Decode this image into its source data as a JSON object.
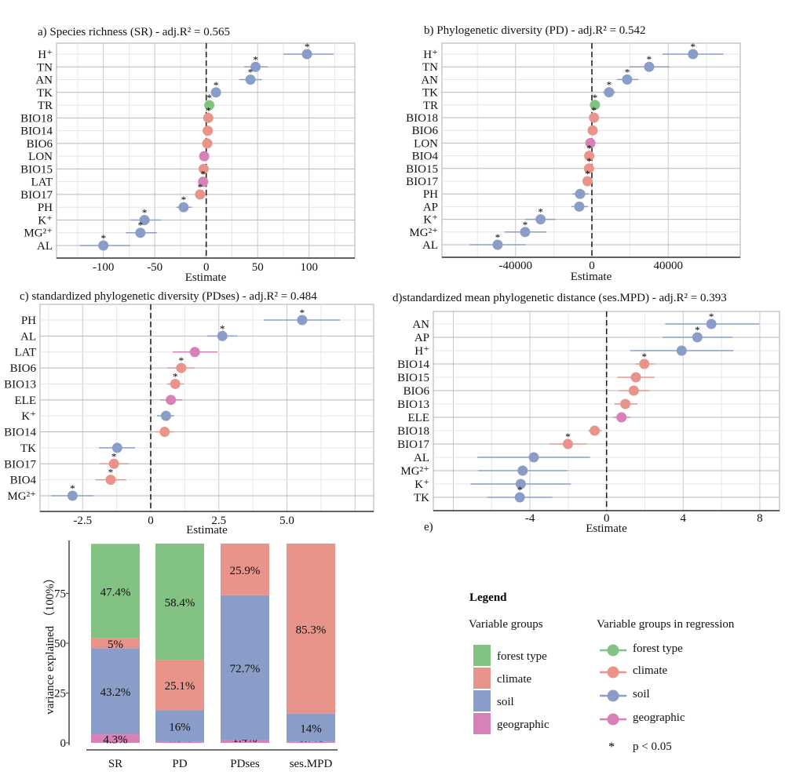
{
  "colors": {
    "forest type": "#82c282",
    "climate": "#e8948a",
    "soil": "#8a9dc8",
    "geographic": "#d880b8"
  },
  "chart_data": [
    {
      "id": "a",
      "type": "scatter",
      "title": "a)  Species richness (SR) -  adj.R² = 0.565",
      "xlabel": "Estimate",
      "ticks": [
        -100,
        -50,
        0,
        50,
        100
      ],
      "xlim": [
        -140,
        140
      ],
      "grid": true,
      "points": [
        {
          "var": "H⁺",
          "group": "soil",
          "est": 98,
          "lo": 75,
          "hi": 124,
          "sig": true
        },
        {
          "var": "TN",
          "group": "soil",
          "est": 48,
          "lo": 37,
          "hi": 60,
          "sig": true
        },
        {
          "var": "AN",
          "group": "soil",
          "est": 43,
          "lo": 32,
          "hi": 54,
          "sig": true
        },
        {
          "var": "TK",
          "group": "soil",
          "est": 9.5,
          "lo": 7,
          "hi": 12,
          "sig": true
        },
        {
          "var": "TR",
          "group": "forest type",
          "est": 3,
          "lo": 1,
          "hi": 5,
          "sig": true
        },
        {
          "var": "BIO18",
          "group": "climate",
          "est": 2,
          "lo": 0,
          "hi": 4,
          "sig": true
        },
        {
          "var": "BIO14",
          "group": "climate",
          "est": 1.5,
          "lo": 0,
          "hi": 3,
          "sig": false
        },
        {
          "var": "BIO6",
          "group": "climate",
          "est": 1,
          "lo": -1,
          "hi": 3,
          "sig": false
        },
        {
          "var": "LON",
          "group": "geographic",
          "est": -2,
          "lo": -4,
          "hi": 0,
          "sig": false
        },
        {
          "var": "BIO15",
          "group": "climate",
          "est": -2.5,
          "lo": -4.5,
          "hi": -0.5,
          "sig": false
        },
        {
          "var": "LAT",
          "group": "geographic",
          "est": -3,
          "lo": -5,
          "hi": -1,
          "sig": true
        },
        {
          "var": "BIO17",
          "group": "climate",
          "est": -6,
          "lo": -8,
          "hi": -4,
          "sig": true
        },
        {
          "var": "PH",
          "group": "soil",
          "est": -22,
          "lo": -29,
          "hi": -14,
          "sig": true
        },
        {
          "var": "K⁺",
          "group": "soil",
          "est": -60,
          "lo": -74,
          "hi": -44,
          "sig": true
        },
        {
          "var": "MG²⁺",
          "group": "soil",
          "est": -64,
          "lo": -78,
          "hi": -48,
          "sig": true
        },
        {
          "var": "AL",
          "group": "soil",
          "est": -100,
          "lo": -123,
          "hi": -74,
          "sig": true
        }
      ]
    },
    {
      "id": "b",
      "type": "scatter",
      "title": "b)  Phylogenetic diversity (PD) -  adj.R² = 0.542",
      "xlabel": "Estimate",
      "ticks": [
        -40000,
        0,
        40000
      ],
      "xlim": [
        -78000,
        78000
      ],
      "grid": true,
      "points": [
        {
          "var": "H⁺",
          "group": "soil",
          "est": 53000,
          "lo": 37000,
          "hi": 69000,
          "sig": true
        },
        {
          "var": "TN",
          "group": "soil",
          "est": 30000,
          "lo": 19800,
          "hi": 40600,
          "sig": true
        },
        {
          "var": "AN",
          "group": "soil",
          "est": 18500,
          "lo": 13200,
          "hi": 24300,
          "sig": true
        },
        {
          "var": "TK",
          "group": "soil",
          "est": 9000,
          "lo": 5600,
          "hi": 12500,
          "sig": true
        },
        {
          "var": "TR",
          "group": "forest type",
          "est": 1600,
          "lo": 600,
          "hi": 2600,
          "sig": true
        },
        {
          "var": "BIO18",
          "group": "climate",
          "est": 1100,
          "lo": 100,
          "hi": 2100,
          "sig": true
        },
        {
          "var": "BIO6",
          "group": "climate",
          "est": 400,
          "lo": -600,
          "hi": 1400,
          "sig": false
        },
        {
          "var": "LON",
          "group": "geographic",
          "est": -800,
          "lo": -1800,
          "hi": 200,
          "sig": false
        },
        {
          "var": "BIO4",
          "group": "climate",
          "est": -1400,
          "lo": -2400,
          "hi": -400,
          "sig": true
        },
        {
          "var": "BIO15",
          "group": "climate",
          "est": -1500,
          "lo": -2500,
          "hi": -500,
          "sig": true
        },
        {
          "var": "BIO17",
          "group": "climate",
          "est": -2300,
          "lo": -3300,
          "hi": -1300,
          "sig": true
        },
        {
          "var": "PH",
          "group": "soil",
          "est": -6200,
          "lo": -10300,
          "hi": -1600,
          "sig": false
        },
        {
          "var": "AP",
          "group": "soil",
          "est": -6600,
          "lo": -10700,
          "hi": -2000,
          "sig": false
        },
        {
          "var": "K⁺",
          "group": "soil",
          "est": -26900,
          "lo": -35000,
          "hi": -19000,
          "sig": true
        },
        {
          "var": "MG²⁺",
          "group": "soil",
          "est": -35000,
          "lo": -45800,
          "hi": -23900,
          "sig": true
        },
        {
          "var": "AL",
          "group": "soil",
          "est": -49400,
          "lo": -64200,
          "hi": -34600,
          "sig": true
        }
      ]
    },
    {
      "id": "c",
      "type": "scatter",
      "title": "c)  standardized phylogenetic diversity (PDses) -  adj.R² = 0.484",
      "xlabel": "Estimate",
      "ticks": [
        -2.5,
        0,
        2.5,
        5.0
      ],
      "tick_labels": [
        "-2.5",
        "0",
        "2.5",
        "5.0"
      ],
      "xlim": [
        -4,
        8.2
      ],
      "grid": true,
      "points": [
        {
          "var": "PH",
          "group": "soil",
          "est": 5.56,
          "lo": 4.14,
          "hi": 6.95,
          "sig": true
        },
        {
          "var": "AL",
          "group": "soil",
          "est": 2.63,
          "lo": 2.08,
          "hi": 3.19,
          "sig": true
        },
        {
          "var": "LAT",
          "group": "geographic",
          "est": 1.62,
          "lo": 0.81,
          "hi": 2.45,
          "sig": false
        },
        {
          "var": "BIO6",
          "group": "climate",
          "est": 1.12,
          "lo": 0.61,
          "hi": 1.63,
          "sig": true
        },
        {
          "var": "BIO13",
          "group": "climate",
          "est": 0.9,
          "lo": 0.6,
          "hi": 1.22,
          "sig": true
        },
        {
          "var": "ELE",
          "group": "geographic",
          "est": 0.74,
          "lo": 0.35,
          "hi": 1.16,
          "sig": false
        },
        {
          "var": "K⁺",
          "group": "soil",
          "est": 0.56,
          "lo": 0.23,
          "hi": 0.86,
          "sig": false
        },
        {
          "var": "BIO14",
          "group": "climate",
          "est": 0.51,
          "lo": 0.18,
          "hi": 0.86,
          "sig": false
        },
        {
          "var": "TK",
          "group": "soil",
          "est": -1.23,
          "lo": -1.9,
          "hi": -0.57,
          "sig": false
        },
        {
          "var": "BIO17",
          "group": "climate",
          "est": -1.35,
          "lo": -1.88,
          "hi": -0.8,
          "sig": true
        },
        {
          "var": "BIO4",
          "group": "climate",
          "est": -1.47,
          "lo": -2.02,
          "hi": -0.9,
          "sig": true
        },
        {
          "var": "MG²⁺",
          "group": "soil",
          "est": -2.87,
          "lo": -3.64,
          "hi": -2.1,
          "sig": true
        }
      ]
    },
    {
      "id": "d",
      "type": "scatter",
      "title": "d)standardized mean phylogenetic distance (ses.MPD) -  adj.R² = 0.393",
      "xlabel": "Estimate",
      "ticks": [
        -4,
        0,
        4,
        8
      ],
      "xlim": [
        -9,
        9
      ],
      "grid": true,
      "points": [
        {
          "var": "AN",
          "group": "soil",
          "est": 5.47,
          "lo": 3.06,
          "hi": 7.98,
          "sig": true
        },
        {
          "var": "AP",
          "group": "soil",
          "est": 4.74,
          "lo": 2.93,
          "hi": 6.58,
          "sig": true
        },
        {
          "var": "H⁺",
          "group": "soil",
          "est": 3.92,
          "lo": 1.23,
          "hi": 6.62,
          "sig": false
        },
        {
          "var": "BIO14",
          "group": "climate",
          "est": 1.97,
          "lo": 1.49,
          "hi": 2.48,
          "sig": true
        },
        {
          "var": "BIO15",
          "group": "climate",
          "est": 1.53,
          "lo": 0.57,
          "hi": 2.51,
          "sig": false
        },
        {
          "var": "BIO6",
          "group": "climate",
          "est": 1.42,
          "lo": 0.64,
          "hi": 2.24,
          "sig": false
        },
        {
          "var": "BIO13",
          "group": "climate",
          "est": 0.98,
          "lo": 0.41,
          "hi": 1.62,
          "sig": false
        },
        {
          "var": "ELE",
          "group": "geographic",
          "est": 0.78,
          "lo": 0.33,
          "hi": 1.25,
          "sig": false
        },
        {
          "var": "BIO18",
          "group": "climate",
          "est": -0.62,
          "lo": -0.96,
          "hi": -0.25,
          "sig": false
        },
        {
          "var": "BIO17",
          "group": "climate",
          "est": -2.02,
          "lo": -2.98,
          "hi": -1.04,
          "sig": true
        },
        {
          "var": "AL",
          "group": "soil",
          "est": -3.8,
          "lo": -6.74,
          "hi": -0.86,
          "sig": false
        },
        {
          "var": "MG²⁺",
          "group": "soil",
          "est": -4.38,
          "lo": -6.7,
          "hi": -2.05,
          "sig": false
        },
        {
          "var": "K⁺",
          "group": "soil",
          "est": -4.48,
          "lo": -7.1,
          "hi": -1.86,
          "sig": false
        },
        {
          "var": "TK",
          "group": "soil",
          "est": -4.53,
          "lo": -6.22,
          "hi": -2.84,
          "sig": true
        }
      ]
    },
    {
      "id": "e",
      "type": "bar",
      "stacked": true,
      "title": "e)",
      "ylabel": "variance explained （100%）",
      "yticks": [
        0,
        25,
        50,
        75
      ],
      "ylim": [
        0,
        100
      ],
      "categories": [
        "SR",
        "PD",
        "PDses",
        "ses.MPD"
      ],
      "series": [
        {
          "name": "geographic",
          "values": [
            4.3,
            0.5,
            1.4,
            0.7
          ],
          "labels": [
            "4.3%",
            "0.5%",
            "1.4%",
            "0.7%"
          ]
        },
        {
          "name": "soil",
          "values": [
            43.2,
            16,
            72.7,
            14
          ],
          "labels": [
            "43.2%",
            "16%",
            "72.7%",
            "14%"
          ]
        },
        {
          "name": "climate",
          "values": [
            5,
            25.1,
            25.9,
            85.3
          ],
          "labels": [
            "5%",
            "25.1%",
            "25.9%",
            "85.3%"
          ]
        },
        {
          "name": "forest type",
          "values": [
            47.4,
            58.4,
            0,
            0
          ],
          "labels": [
            "47.4%",
            "58.4%",
            "",
            ""
          ]
        }
      ]
    }
  ],
  "legend": {
    "title": "Legend",
    "groups_title": "Variable groups",
    "regression_title": "Variable groups in regression",
    "items": [
      "forest type",
      "climate",
      "soil",
      "geographic"
    ],
    "sig_symbol": "*",
    "sig_label": "p < 0.05"
  }
}
